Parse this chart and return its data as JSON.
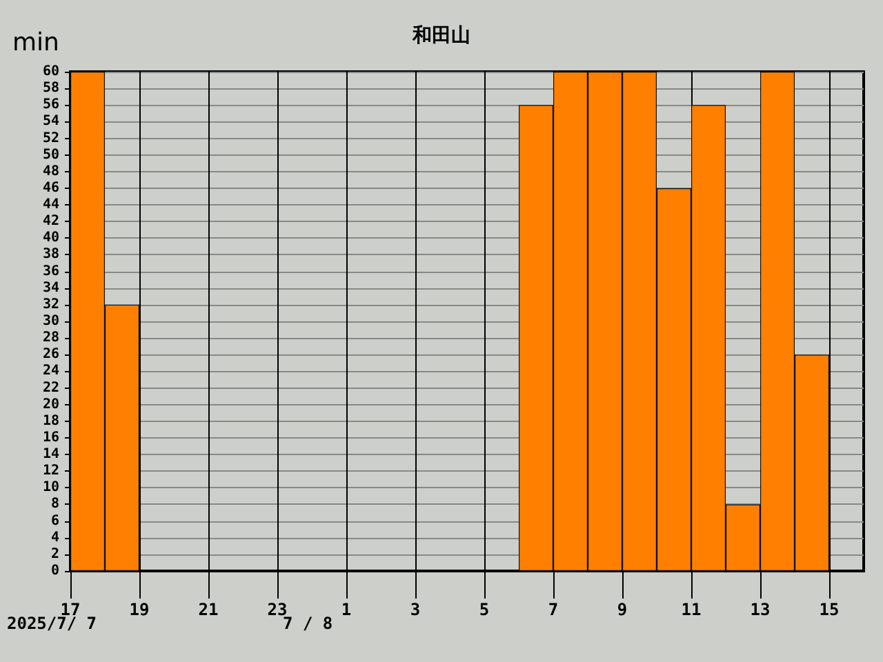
{
  "chart_data": {
    "type": "bar",
    "title": "和田山",
    "ylabel": "min",
    "x": [
      "2025-07-07T17:30",
      "2025-07-07T18:30",
      "2025-07-07T19:30",
      "2025-07-07T20:30",
      "2025-07-07T21:30",
      "2025-07-07T22:30",
      "2025-07-07T23:30",
      "2025-07-08T00:30",
      "2025-07-08T01:30",
      "2025-07-08T02:30",
      "2025-07-08T03:30",
      "2025-07-08T04:30",
      "2025-07-08T05:30",
      "2025-07-08T06:30",
      "2025-07-08T07:30",
      "2025-07-08T08:30",
      "2025-07-08T09:30",
      "2025-07-08T10:30",
      "2025-07-08T11:30",
      "2025-07-08T12:30",
      "2025-07-08T13:30",
      "2025-07-08T14:30"
    ],
    "values": [
      60,
      32,
      0,
      0,
      0,
      0,
      0,
      0,
      0,
      0,
      0,
      0,
      0,
      56,
      60,
      60,
      60,
      46,
      56,
      8,
      60,
      26
    ],
    "color": "#ff8000",
    "xlim": [
      "2025-07-07T17:00",
      "2025-07-08T16:00"
    ],
    "xticks": [
      {
        "value": "2025-07-07T17:00",
        "label": "17"
      },
      {
        "value": "2025-07-07T19:00",
        "label": "19"
      },
      {
        "value": "2025-07-07T21:00",
        "label": "21"
      },
      {
        "value": "2025-07-07T23:00",
        "label": "23"
      },
      {
        "value": "2025-07-08T01:00",
        "label": "1"
      },
      {
        "value": "2025-07-08T03:00",
        "label": "3"
      },
      {
        "value": "2025-07-08T05:00",
        "label": "5"
      },
      {
        "value": "2025-07-08T07:00",
        "label": "7"
      },
      {
        "value": "2025-07-08T09:00",
        "label": "9"
      },
      {
        "value": "2025-07-08T11:00",
        "label": "11"
      },
      {
        "value": "2025-07-08T13:00",
        "label": "13"
      },
      {
        "value": "2025-07-08T15:00",
        "label": "15"
      }
    ],
    "ylim": [
      0,
      60
    ],
    "yticks": [
      0,
      2,
      4,
      6,
      8,
      10,
      12,
      14,
      16,
      18,
      20,
      22,
      24,
      26,
      28,
      30,
      32,
      34,
      36,
      38,
      40,
      42,
      44,
      46,
      48,
      50,
      52,
      54,
      56,
      58,
      60
    ],
    "annotations": [
      "2025/7/ 7",
      "7 / 8"
    ],
    "grid": true
  }
}
